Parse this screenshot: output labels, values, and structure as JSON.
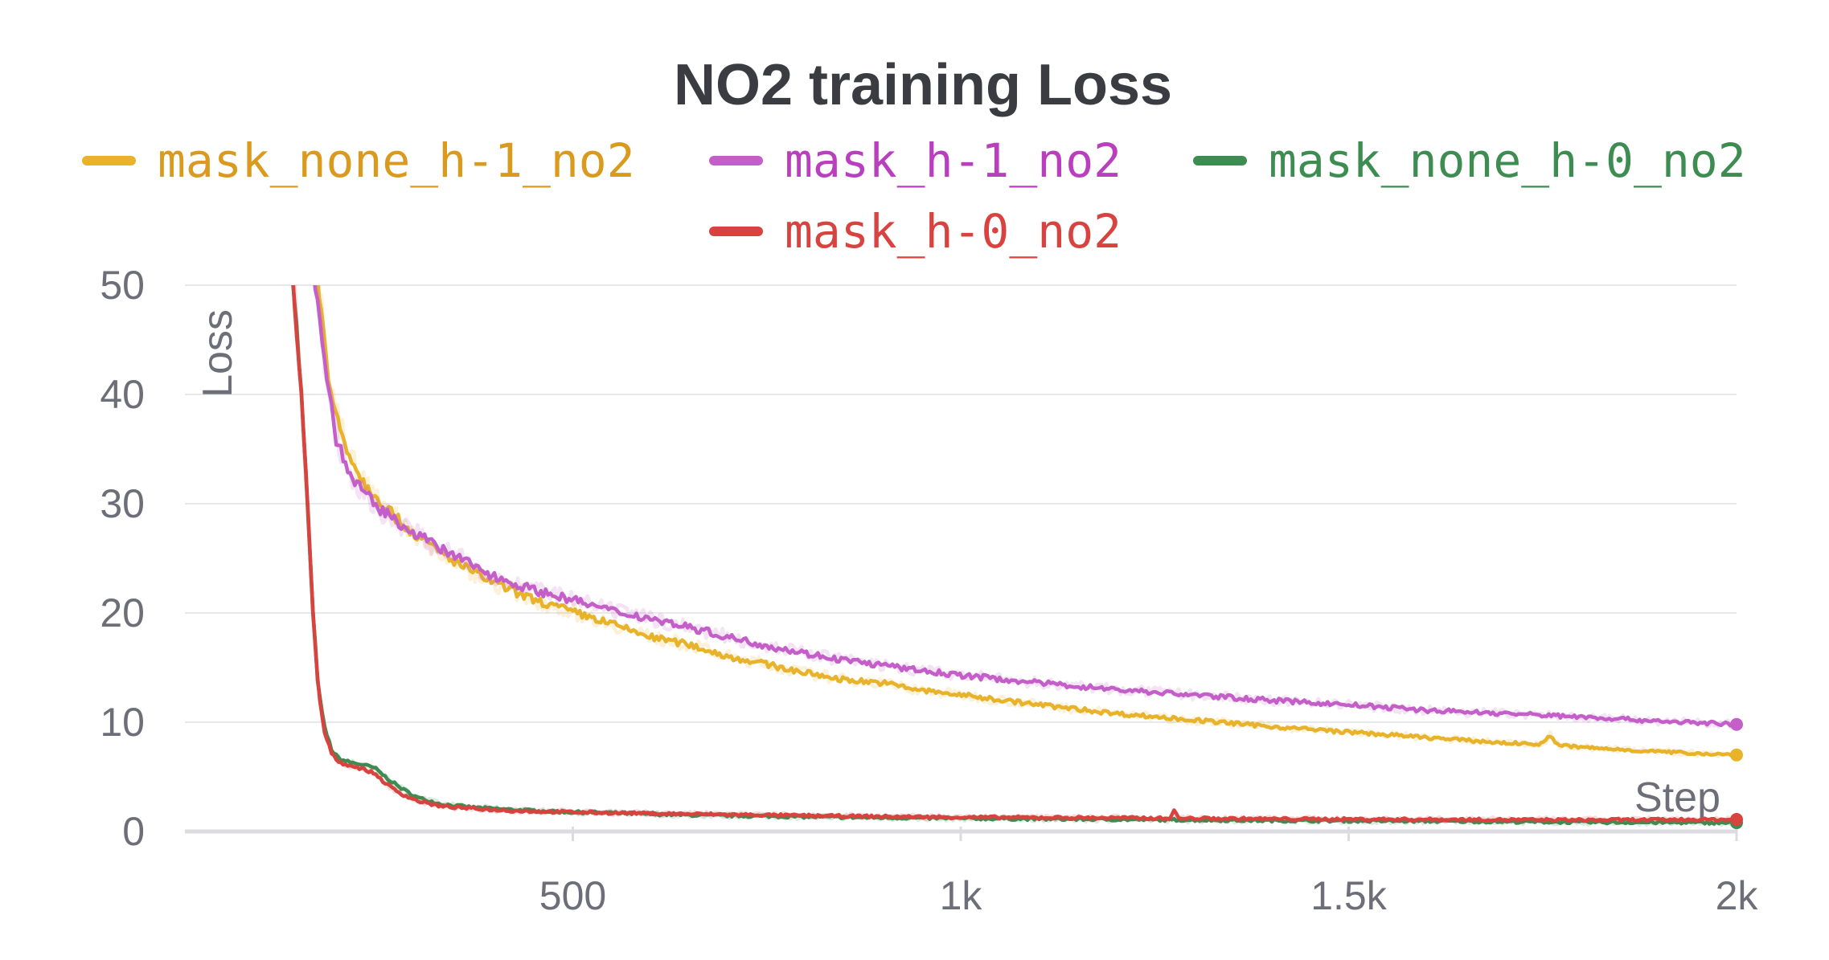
{
  "chart_data": {
    "type": "line",
    "title": "NO2 training Loss",
    "xlabel": "Step",
    "ylabel": "Loss",
    "xlim": [
      0,
      2000
    ],
    "ylim": [
      0,
      50
    ],
    "grid": true,
    "legend_position": "top",
    "x_ticks": [
      {
        "value": 500,
        "label": "500"
      },
      {
        "value": 1000,
        "label": "1k"
      },
      {
        "value": 1500,
        "label": "1.5k"
      },
      {
        "value": 2000,
        "label": "2k"
      }
    ],
    "y_ticks": [
      {
        "value": 0,
        "label": "0"
      },
      {
        "value": 10,
        "label": "10"
      },
      {
        "value": 20,
        "label": "20"
      },
      {
        "value": 30,
        "label": "30"
      },
      {
        "value": 40,
        "label": "40"
      },
      {
        "value": 50,
        "label": "50"
      }
    ],
    "series": [
      {
        "name": "mask_none_h-1_no2",
        "color": "#e8b22a",
        "label_color": "#d99a1e",
        "points": [
          [
            170,
            52
          ],
          [
            185,
            41
          ],
          [
            200,
            37
          ],
          [
            215,
            34
          ],
          [
            230,
            32
          ],
          [
            250,
            30.5
          ],
          [
            275,
            28.5
          ],
          [
            300,
            27
          ],
          [
            330,
            25.5
          ],
          [
            360,
            24.2
          ],
          [
            400,
            22.7
          ],
          [
            450,
            21.2
          ],
          [
            500,
            20.1
          ],
          [
            550,
            19
          ],
          [
            600,
            17.8
          ],
          [
            650,
            17.1
          ],
          [
            700,
            16
          ],
          [
            750,
            15.3
          ],
          [
            800,
            14.5
          ],
          [
            850,
            13.9
          ],
          [
            900,
            13.6
          ],
          [
            950,
            12.9
          ],
          [
            1000,
            12.5
          ],
          [
            1100,
            11.6
          ],
          [
            1200,
            10.8
          ],
          [
            1300,
            10.2
          ],
          [
            1400,
            9.6
          ],
          [
            1500,
            9.1
          ],
          [
            1600,
            8.6
          ],
          [
            1700,
            8.1
          ],
          [
            1750,
            8
          ],
          [
            1760,
            8.8
          ],
          [
            1770,
            7.9
          ],
          [
            1800,
            7.7
          ],
          [
            1900,
            7.3
          ],
          [
            2000,
            7
          ]
        ]
      },
      {
        "name": "mask_h-1_no2",
        "color": "#c45fc9",
        "label_color": "#b93fbf",
        "points": [
          [
            165,
            52
          ],
          [
            180,
            43
          ],
          [
            195,
            36
          ],
          [
            210,
            33
          ],
          [
            230,
            31
          ],
          [
            250,
            29.5
          ],
          [
            275,
            28.3
          ],
          [
            300,
            27.2
          ],
          [
            330,
            25.8
          ],
          [
            360,
            24.8
          ],
          [
            400,
            23.3
          ],
          [
            450,
            22.1
          ],
          [
            500,
            21.2
          ],
          [
            550,
            20.2
          ],
          [
            600,
            19.5
          ],
          [
            650,
            18.7
          ],
          [
            700,
            17.8
          ],
          [
            750,
            17
          ],
          [
            800,
            16.3
          ],
          [
            850,
            15.7
          ],
          [
            900,
            15.2
          ],
          [
            950,
            14.7
          ],
          [
            1000,
            14.3
          ],
          [
            1100,
            13.6
          ],
          [
            1200,
            13
          ],
          [
            1300,
            12.5
          ],
          [
            1400,
            12
          ],
          [
            1500,
            11.6
          ],
          [
            1600,
            11.1
          ],
          [
            1700,
            10.8
          ],
          [
            1800,
            10.5
          ],
          [
            1900,
            10.1
          ],
          [
            2000,
            9.8
          ]
        ]
      },
      {
        "name": "mask_none_h-0_no2",
        "color": "#3d8c52",
        "label_color": "#3d8c52",
        "points": [
          [
            138,
            52
          ],
          [
            150,
            40
          ],
          [
            158,
            30
          ],
          [
            165,
            20
          ],
          [
            172,
            13
          ],
          [
            180,
            9.5
          ],
          [
            190,
            7.3
          ],
          [
            200,
            6.6
          ],
          [
            215,
            6.3
          ],
          [
            230,
            6.1
          ],
          [
            245,
            5.8
          ],
          [
            260,
            4.9
          ],
          [
            280,
            3.9
          ],
          [
            300,
            3.1
          ],
          [
            330,
            2.5
          ],
          [
            370,
            2.2
          ],
          [
            420,
            2
          ],
          [
            480,
            1.8
          ],
          [
            550,
            1.7
          ],
          [
            650,
            1.5
          ],
          [
            750,
            1.4
          ],
          [
            850,
            1.3
          ],
          [
            1000,
            1.2
          ],
          [
            1200,
            1.1
          ],
          [
            1400,
            1
          ],
          [
            1600,
            0.95
          ],
          [
            1800,
            0.85
          ],
          [
            2000,
            0.8
          ]
        ]
      },
      {
        "name": "mask_h-0_no2",
        "color": "#d8423f",
        "label_color": "#d8423f",
        "points": [
          [
            138,
            52
          ],
          [
            150,
            40
          ],
          [
            158,
            30
          ],
          [
            165,
            20
          ],
          [
            172,
            13
          ],
          [
            180,
            9
          ],
          [
            190,
            7
          ],
          [
            200,
            6.3
          ],
          [
            215,
            6
          ],
          [
            230,
            5.7
          ],
          [
            245,
            5.3
          ],
          [
            260,
            4.3
          ],
          [
            280,
            3.4
          ],
          [
            300,
            2.8
          ],
          [
            330,
            2.3
          ],
          [
            370,
            2.1
          ],
          [
            420,
            1.9
          ],
          [
            480,
            1.8
          ],
          [
            550,
            1.7
          ],
          [
            650,
            1.6
          ],
          [
            750,
            1.5
          ],
          [
            850,
            1.4
          ],
          [
            1000,
            1.3
          ],
          [
            1200,
            1.25
          ],
          [
            1270,
            1.2
          ],
          [
            1275,
            2
          ],
          [
            1280,
            1.2
          ],
          [
            1400,
            1.15
          ],
          [
            1600,
            1.1
          ],
          [
            1800,
            1.05
          ],
          [
            2000,
            1.1
          ]
        ]
      }
    ]
  }
}
